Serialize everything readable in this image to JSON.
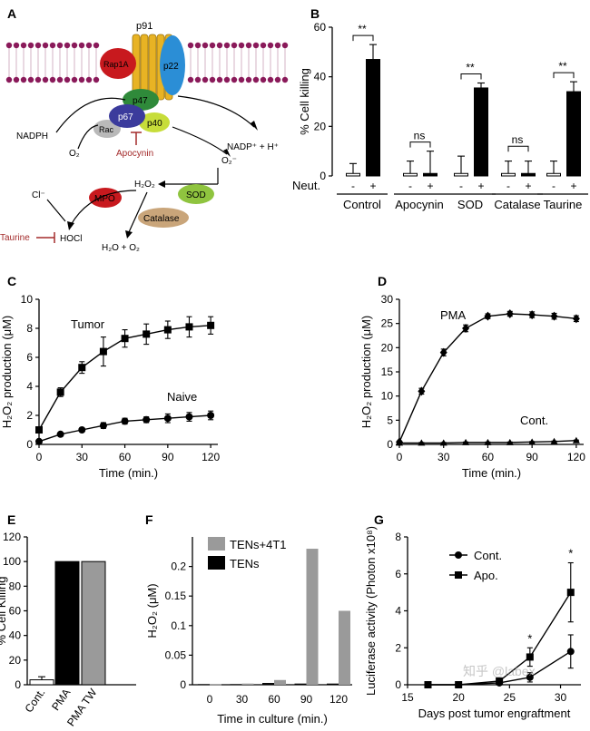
{
  "watermark": "知乎 @labex",
  "panelA": {
    "letter": "A",
    "labels": {
      "p91": "p91",
      "rap1a": "Rap1A",
      "p22": "p22",
      "p47": "p47",
      "p67": "p67",
      "p40": "p40",
      "rac": "Rac",
      "apocynin": "Apocynin",
      "nadph": "NADPH",
      "o2": "O₂",
      "nadp": "NADP⁺ + H⁺",
      "o2minus": "O₂⁻",
      "h2o2": "H₂O₂",
      "sod": "SOD",
      "mpo": "MPO",
      "catalase": "Catalase",
      "cl": "Cl⁻",
      "hocl": "HOCl",
      "taurine": "Taurine",
      "h2o": "H₂O + O₂"
    },
    "colors": {
      "membrane": "#8a1a5a",
      "p91": "#e8b324",
      "rap1a": "#c8191e",
      "p22": "#2b8ed6",
      "p47": "#2f8a3a",
      "p67": "#3b3b9c",
      "p40": "#c7dd3a",
      "rac": "#b9b9b9",
      "sod": "#8fc43f",
      "mpo": "#c8191e",
      "catalase": "#c9a57a",
      "inhibit": "#a32a2a"
    }
  },
  "chart_data": [
    {
      "panel": "B",
      "type": "bar",
      "ylabel": "% Cell killing",
      "ylim": [
        0,
        60
      ],
      "yticks": [
        0,
        20,
        40,
        60
      ],
      "factor_label": "Neut.",
      "levels": [
        "-",
        "+"
      ],
      "categories": [
        "Control",
        "Apocynin",
        "SOD",
        "Catalase",
        "Taurine"
      ],
      "series": [
        {
          "values": [
            1,
            1,
            1,
            1,
            1
          ],
          "err": [
            4,
            5,
            7,
            5,
            5
          ]
        },
        {
          "values": [
            47,
            1,
            35.5,
            1,
            34
          ],
          "err": [
            6,
            9,
            2,
            5,
            4
          ]
        }
      ],
      "series_colors": [
        "#ffffff",
        "#000000"
      ],
      "significance": [
        "**",
        "ns",
        "**",
        "ns",
        "**"
      ]
    },
    {
      "panel": "C",
      "type": "line",
      "xlabel": "Time (min.)",
      "ylabel": "H₂O₂ production (μM)",
      "xlim": [
        0,
        125
      ],
      "ylim": [
        0,
        10
      ],
      "xticks": [
        0,
        30,
        60,
        90,
        120
      ],
      "yticks": [
        0,
        2,
        4,
        6,
        8,
        10
      ],
      "series": [
        {
          "name": "Tumor",
          "marker": "square",
          "x": [
            0,
            15,
            30,
            45,
            60,
            75,
            90,
            105,
            120
          ],
          "y": [
            1.0,
            3.6,
            5.3,
            6.4,
            7.3,
            7.6,
            7.9,
            8.1,
            8.2
          ],
          "err": [
            0.2,
            0.3,
            0.4,
            1.0,
            0.6,
            0.7,
            0.6,
            0.7,
            0.6
          ]
        },
        {
          "name": "Naive",
          "marker": "circle",
          "x": [
            0,
            15,
            30,
            45,
            60,
            75,
            90,
            105,
            120
          ],
          "y": [
            0.2,
            0.7,
            1.0,
            1.3,
            1.6,
            1.7,
            1.8,
            1.9,
            2.0
          ],
          "err": [
            0.1,
            0.1,
            0.1,
            0.2,
            0.2,
            0.2,
            0.3,
            0.3,
            0.3
          ]
        }
      ]
    },
    {
      "panel": "D",
      "type": "line",
      "xlabel": "Time (min.)",
      "ylabel": "H₂O₂ production (μM)",
      "xlim": [
        0,
        125
      ],
      "ylim": [
        0,
        30
      ],
      "xticks": [
        0,
        30,
        60,
        90,
        120
      ],
      "yticks": [
        0,
        5,
        10,
        15,
        20,
        25,
        30
      ],
      "series": [
        {
          "name": "PMA",
          "marker": "diamond",
          "x": [
            0,
            15,
            30,
            45,
            60,
            75,
            90,
            105,
            120
          ],
          "y": [
            0.5,
            11,
            19,
            24,
            26.5,
            27,
            26.8,
            26.5,
            26
          ],
          "err": [
            0.2,
            0.6,
            0.7,
            0.7,
            0.5,
            0.5,
            0.6,
            0.6,
            0.6
          ]
        },
        {
          "name": "Cont.",
          "marker": "triangle",
          "x": [
            0,
            15,
            30,
            45,
            60,
            75,
            90,
            105,
            120
          ],
          "y": [
            0.3,
            0.3,
            0.3,
            0.4,
            0.4,
            0.4,
            0.5,
            0.6,
            0.8
          ],
          "err": [
            0.1,
            0.1,
            0.1,
            0.1,
            0.1,
            0.1,
            0.1,
            0.1,
            0.1
          ]
        }
      ]
    },
    {
      "panel": "E",
      "type": "bar",
      "ylabel": "% Cell Killing",
      "ylim": [
        0,
        120
      ],
      "yticks": [
        0,
        20,
        40,
        60,
        80,
        100,
        120
      ],
      "categories": [
        "Cont.",
        "PMA",
        "PMA TW"
      ],
      "values": [
        4,
        100,
        100
      ],
      "err": [
        2.5,
        0,
        0
      ],
      "colors": [
        "#ffffff",
        "#000000",
        "#9a9a9a"
      ]
    },
    {
      "panel": "F",
      "type": "bar",
      "xlabel": "Time in culture (min.)",
      "ylabel": "H₂O₂ (μM)",
      "ylim": [
        0,
        0.25
      ],
      "yticks": [
        0,
        0.05,
        0.1,
        0.15,
        0.2
      ],
      "categories": [
        "0",
        "30",
        "60",
        "90",
        "120"
      ],
      "series": [
        {
          "name": "TENs",
          "color": "#000000",
          "values": [
            0.001,
            0.001,
            0.003,
            0.002,
            0.002
          ]
        },
        {
          "name": "TENs+4T1",
          "color": "#9a9a9a",
          "values": [
            0.001,
            0.002,
            0.008,
            0.23,
            0.125
          ]
        }
      ]
    },
    {
      "panel": "G",
      "type": "line",
      "xlabel": "Days post tumor engraftment",
      "ylabel": "Luciferase activity (Photon x10⁸)",
      "xlim": [
        15,
        32
      ],
      "ylim": [
        0,
        8
      ],
      "xticks": [
        15,
        20,
        25,
        30
      ],
      "yticks": [
        0,
        2,
        4,
        6,
        8
      ],
      "series": [
        {
          "name": "Cont.",
          "marker": "circle",
          "x": [
            17,
            20,
            24,
            27,
            31
          ],
          "y": [
            0,
            0,
            0.1,
            0.4,
            1.8
          ],
          "err": [
            0.05,
            0.05,
            0.1,
            0.25,
            0.9
          ]
        },
        {
          "name": "Apo.",
          "marker": "square",
          "x": [
            17,
            20,
            24,
            27,
            31
          ],
          "y": [
            0,
            0,
            0.2,
            1.5,
            5.0
          ],
          "err": [
            0.05,
            0.05,
            0.15,
            0.5,
            1.6
          ]
        }
      ],
      "significance": [
        {
          "x": 27,
          "label": "*"
        },
        {
          "x": 31,
          "label": "*"
        }
      ]
    }
  ]
}
